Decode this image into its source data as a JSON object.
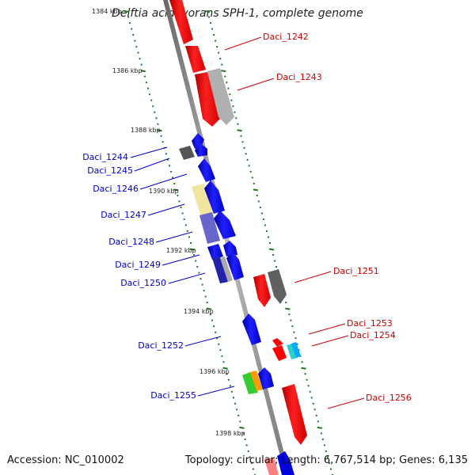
{
  "title": "Delftia acidovorans SPH-1, complete genome",
  "footer": {
    "accession": "Accession: NC_010002",
    "summary": "Topology: circular; Length: 6,767,514 bp; Genes: 6,135"
  },
  "colors": {
    "forward_strand": "#ff0000",
    "reverse_strand": "#0000ff",
    "forward_label": "#cc0000",
    "reverse_label": "#0000cc",
    "tick": "#1a7a1a",
    "backbone": "#888888"
  },
  "kbp_ticks": [
    "1384 kbp",
    "1386 kbp",
    "1388 kbp",
    "1390 kbp",
    "1392 kbp",
    "1394 kbp",
    "1396 kbp",
    "1398 kbp"
  ],
  "gene_labels": {
    "forward": [
      "Daci_1242",
      "Daci_1243",
      "Daci_1251",
      "Daci_1253",
      "Daci_1254",
      "Daci_1256"
    ],
    "reverse": [
      "Daci_1244",
      "Daci_1245",
      "Daci_1246",
      "Daci_1247",
      "Daci_1248",
      "Daci_1249",
      "Daci_1250",
      "Daci_1252",
      "Daci_1255"
    ]
  }
}
